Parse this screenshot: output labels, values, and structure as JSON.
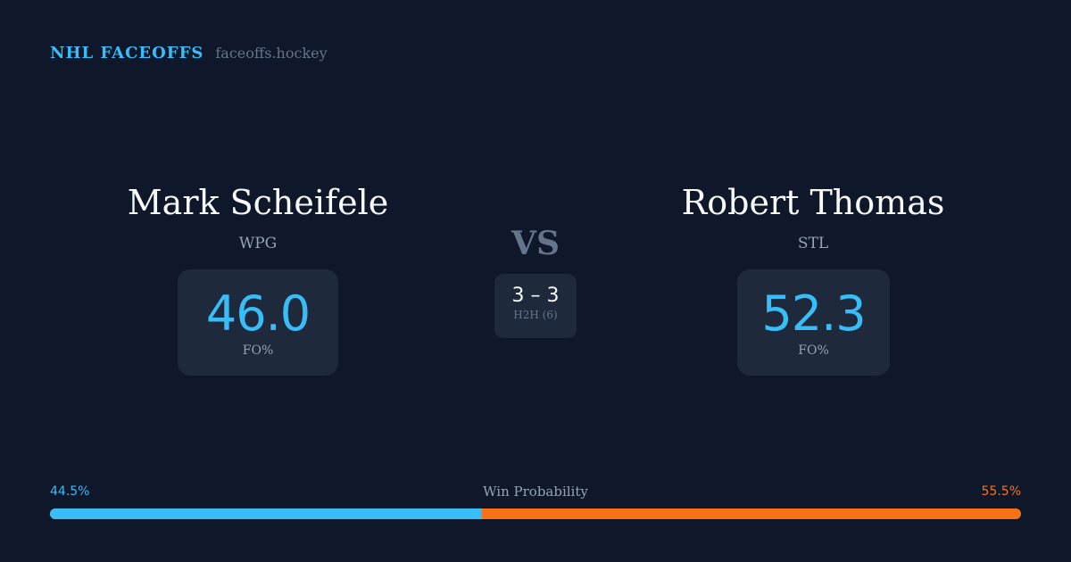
{
  "brand": {
    "title": "NHL FACEOFFS",
    "site": "faceoffs.hockey"
  },
  "left": {
    "name": "Mark Scheifele",
    "team": "WPG",
    "fo_pct": "46.0",
    "fo_label": "FO%"
  },
  "right": {
    "name": "Robert Thomas",
    "team": "STL",
    "fo_pct": "52.3",
    "fo_label": "FO%"
  },
  "vs": "VS",
  "h2h": {
    "score": "3 – 3",
    "label": "H2H (6)"
  },
  "win_probability": {
    "label": "Win Probability",
    "left": "44.5%",
    "right": "55.5%",
    "left_value": 44.5,
    "right_value": 55.5
  },
  "colors": {
    "left": "#38bdf8",
    "right": "#f97316",
    "background": "#0f172a"
  }
}
